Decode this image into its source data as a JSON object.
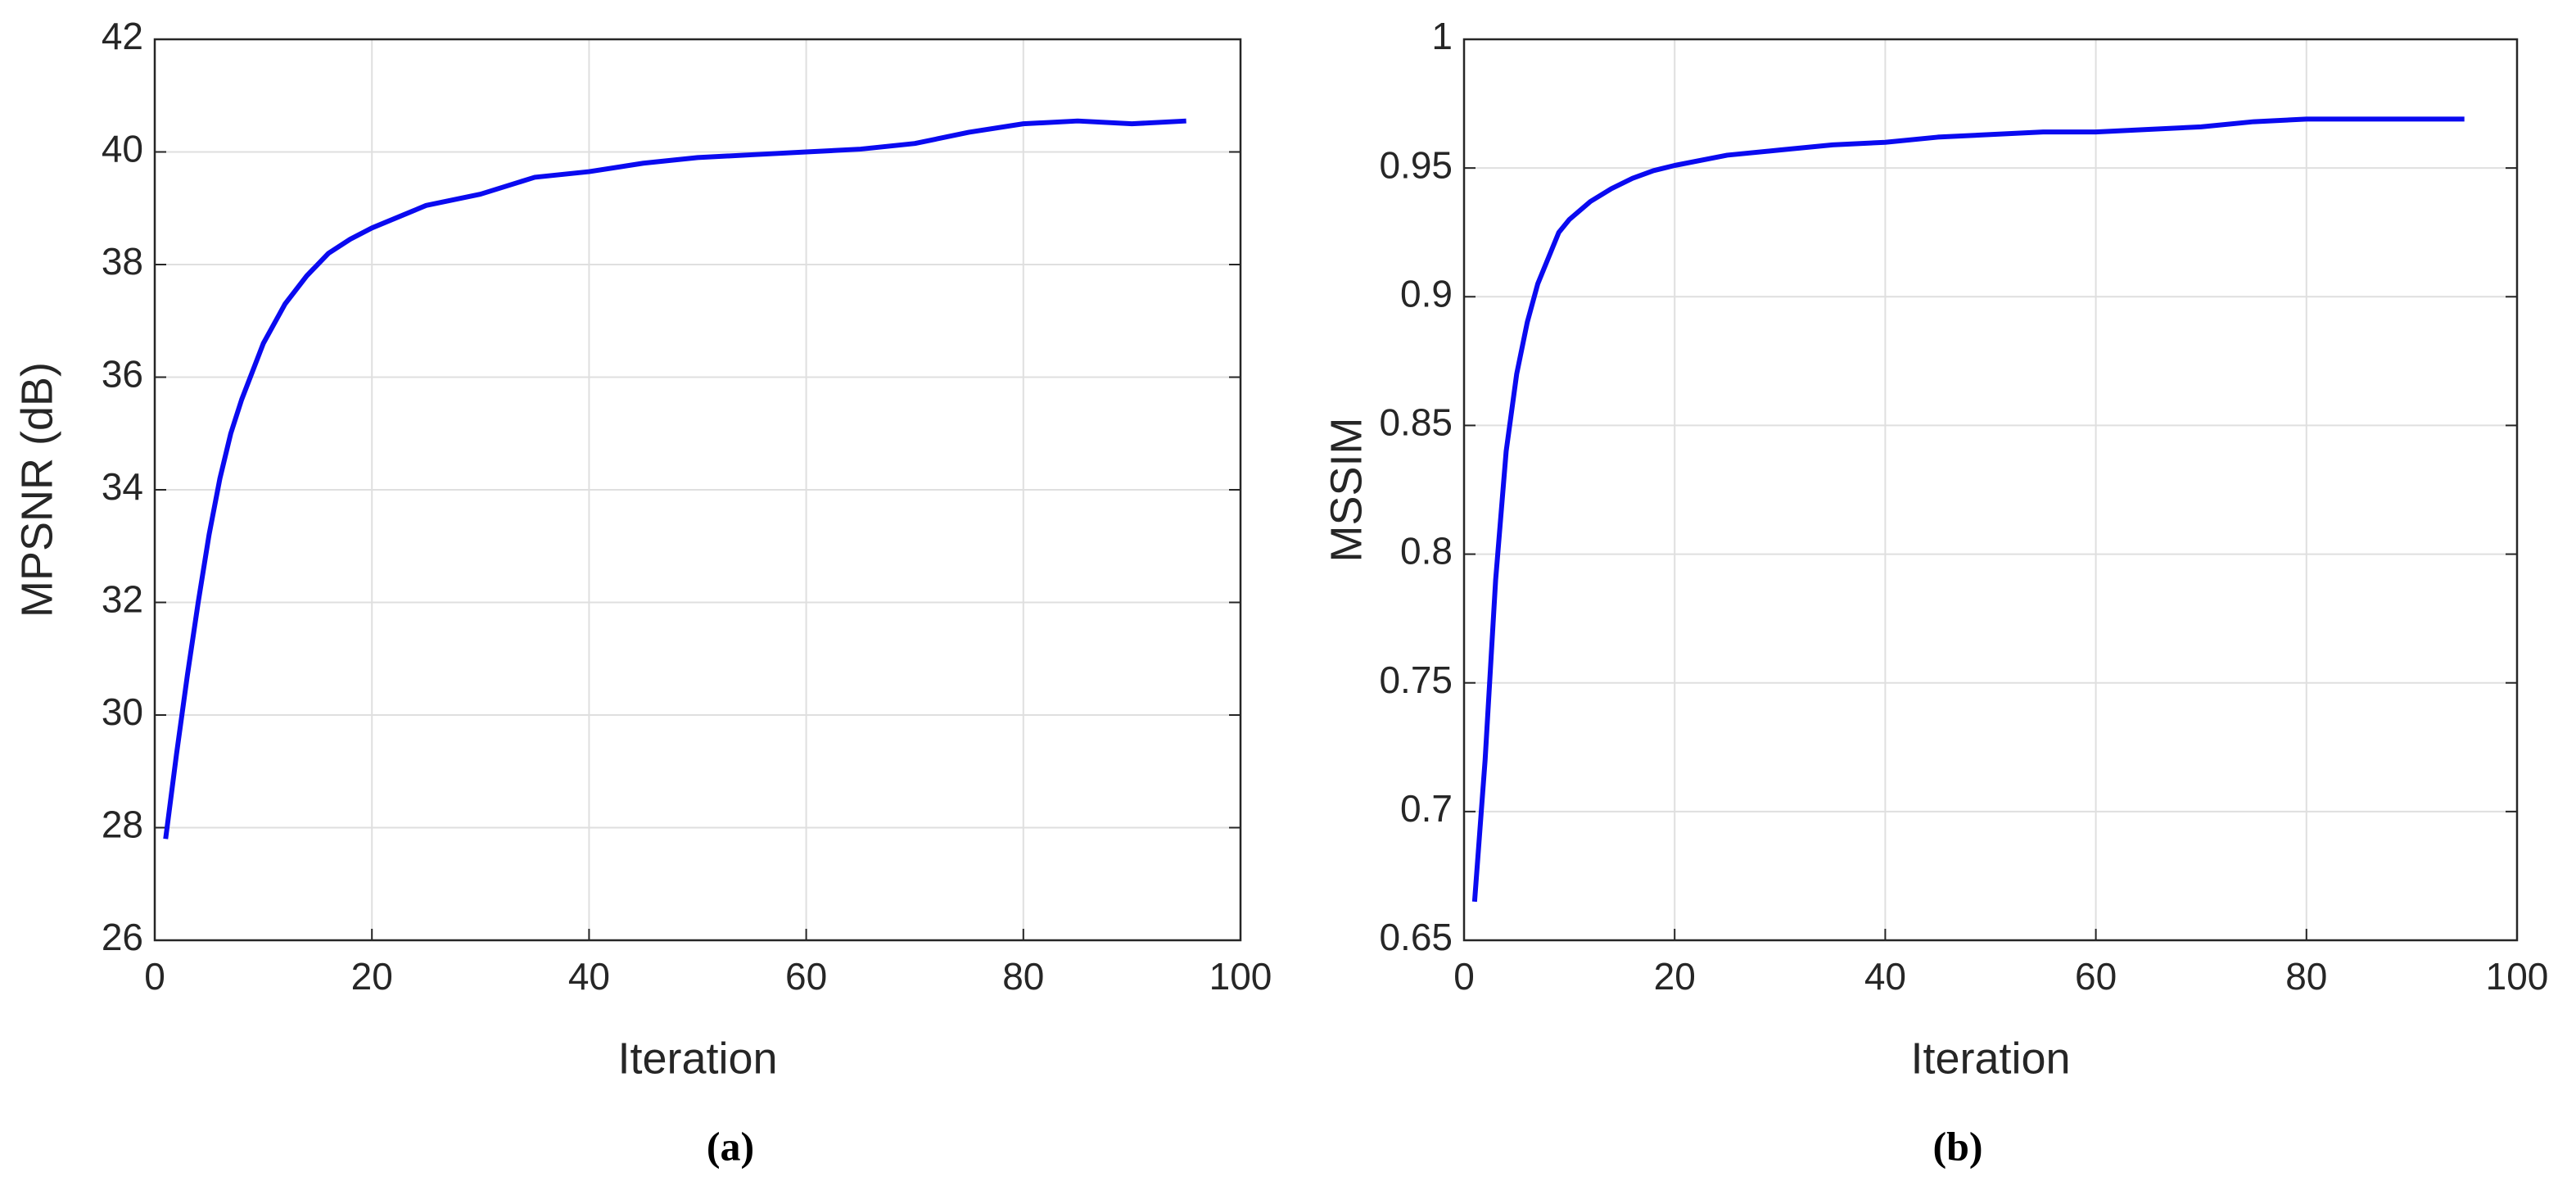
{
  "chart_data": [
    {
      "type": "line",
      "caption": "(a)",
      "x_label": "Iteration",
      "y_label": "MPSNR (dB)",
      "x": [
        1,
        2,
        3,
        4,
        5,
        6,
        7,
        8,
        9,
        10,
        12,
        14,
        16,
        18,
        20,
        25,
        30,
        35,
        40,
        45,
        50,
        55,
        60,
        65,
        70,
        75,
        80,
        85,
        90,
        95
      ],
      "values": [
        27.8,
        29.3,
        30.7,
        32.0,
        33.2,
        34.2,
        35.0,
        35.6,
        36.1,
        36.6,
        37.3,
        37.8,
        38.2,
        38.45,
        38.65,
        39.05,
        39.25,
        39.55,
        39.65,
        39.8,
        39.9,
        39.95,
        40.0,
        40.05,
        40.15,
        40.35,
        40.5,
        40.55,
        40.5,
        40.55
      ],
      "color": "#0a0af0",
      "xlim": [
        0,
        100
      ],
      "xticks": [
        0,
        20,
        40,
        60,
        80,
        100
      ],
      "ylim": [
        26,
        42
      ],
      "yticks": [
        26,
        28,
        30,
        32,
        34,
        36,
        38,
        40,
        42
      ],
      "grid": true
    },
    {
      "type": "line",
      "caption": "(b)",
      "x_label": "Iteration",
      "y_label": "MSSIM",
      "x": [
        1,
        2,
        3,
        4,
        5,
        6,
        7,
        8,
        9,
        10,
        12,
        14,
        16,
        18,
        20,
        25,
        30,
        35,
        40,
        45,
        50,
        55,
        60,
        65,
        70,
        75,
        80,
        85,
        90,
        95
      ],
      "values": [
        0.665,
        0.72,
        0.79,
        0.84,
        0.87,
        0.89,
        0.905,
        0.915,
        0.925,
        0.93,
        0.937,
        0.942,
        0.946,
        0.949,
        0.951,
        0.955,
        0.957,
        0.959,
        0.96,
        0.962,
        0.963,
        0.964,
        0.964,
        0.965,
        0.966,
        0.968,
        0.969,
        0.969,
        0.969,
        0.969
      ],
      "color": "#0a0af0",
      "xlim": [
        0,
        100
      ],
      "xticks": [
        0,
        20,
        40,
        60,
        80,
        100
      ],
      "ylim": [
        0.65,
        1
      ],
      "yticks": [
        0.65,
        0.7,
        0.75,
        0.8,
        0.85,
        0.9,
        0.95,
        1
      ],
      "grid": true
    }
  ]
}
